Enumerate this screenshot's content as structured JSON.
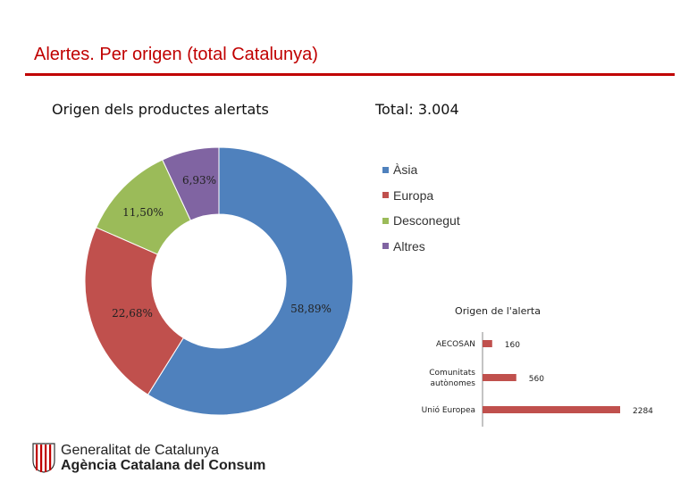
{
  "header": {
    "title": "Alertes. Per origen (total Catalunya)"
  },
  "chart_data": [
    {
      "type": "pie",
      "title": "Origen dels productes alertats",
      "subtitle": "Total: 3.004",
      "categories": [
        "Àsia",
        "Europa",
        "Desconegut",
        "Altres"
      ],
      "values": [
        58.89,
        22.68,
        11.5,
        6.93
      ],
      "value_labels": [
        "58,89%",
        "22,68%",
        "11,50%",
        "6,93%"
      ],
      "colors": [
        "#4f81bd",
        "#c0504d",
        "#9bbb59",
        "#8064a2"
      ],
      "legend_position": "right"
    },
    {
      "type": "bar",
      "orientation": "horizontal",
      "title": "Origen de l'alerta",
      "categories": [
        "AECOSAN",
        "Comunitats autònomes",
        "Unió Europea"
      ],
      "category_lines": [
        [
          "AECOSAN"
        ],
        [
          "Comunitats",
          "autònomes"
        ],
        [
          "Unió Europea"
        ]
      ],
      "values": [
        160,
        560,
        2284
      ],
      "color": "#c0504d"
    }
  ],
  "footer": {
    "logo_line1": "Generalitat de Catalunya",
    "logo_line2": "Agència Catalana del Consum"
  }
}
